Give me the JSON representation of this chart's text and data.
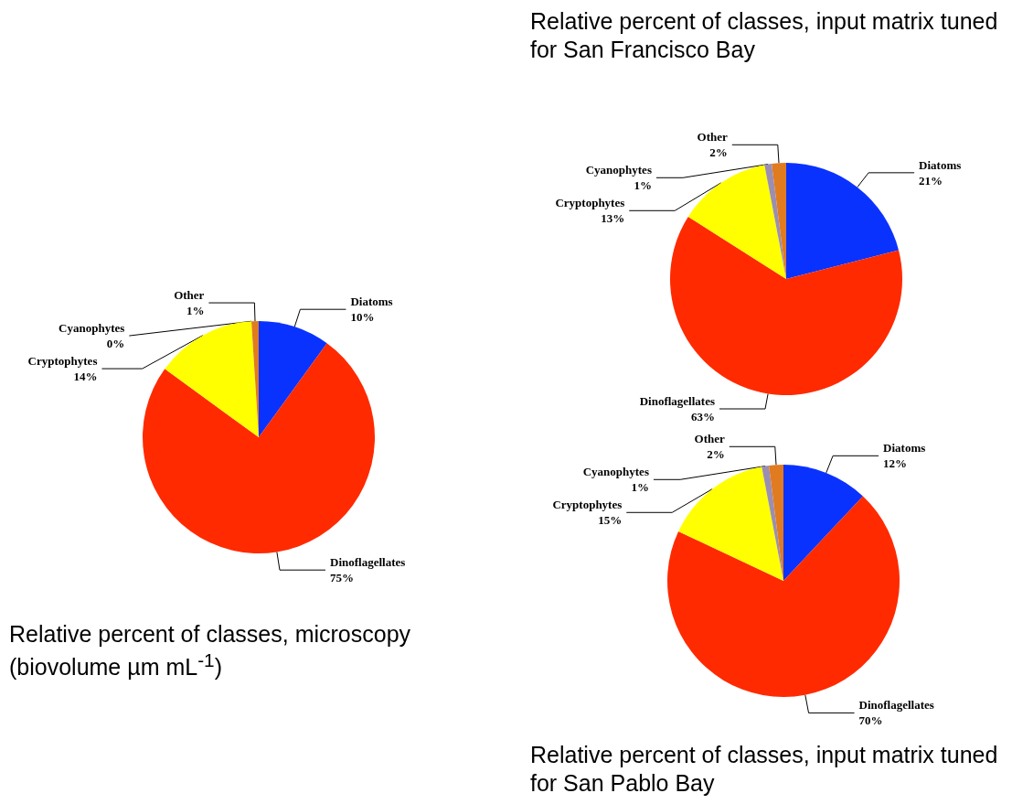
{
  "chart_data": [
    {
      "type": "pie",
      "title": "Relative percent of classes, microscopy (biovolume µm mL$^{-1}$)",
      "categories": [
        "Diatoms",
        "Dinoflagellates",
        "Cryptophytes",
        "Cyanophytes",
        "Other"
      ],
      "values": [
        10,
        75,
        14,
        0,
        1
      ],
      "colors": [
        "#0a32ff",
        "#ff2a00",
        "#ffff00",
        "#9a8fb0",
        "#e07b20"
      ],
      "value_labels": [
        "10%",
        "75%",
        "14%",
        "0%",
        "1%"
      ]
    },
    {
      "type": "pie",
      "title": "Relative percent of classes, input matrix tuned for San Francisco Bay",
      "categories": [
        "Diatoms",
        "Dinoflagellates",
        "Cryptophytes",
        "Cyanophytes",
        "Other"
      ],
      "values": [
        21,
        63,
        13,
        1,
        2
      ],
      "colors": [
        "#0a32ff",
        "#ff2a00",
        "#ffff00",
        "#9a8fb0",
        "#e07b20"
      ],
      "value_labels": [
        "21%",
        "63%",
        "13%",
        "1%",
        "2%"
      ]
    },
    {
      "type": "pie",
      "title": "Relative percent of classes, input matrix tuned for San Pablo Bay",
      "categories": [
        "Diatoms",
        "Dinoflagellates",
        "Cryptophytes",
        "Cyanophytes",
        "Other"
      ],
      "values": [
        12,
        70,
        15,
        1,
        2
      ],
      "colors": [
        "#0a32ff",
        "#ff2a00",
        "#ffff00",
        "#9a8fb0",
        "#e07b20"
      ],
      "value_labels": [
        "12%",
        "70%",
        "15%",
        "1%",
        "2%"
      ]
    }
  ]
}
